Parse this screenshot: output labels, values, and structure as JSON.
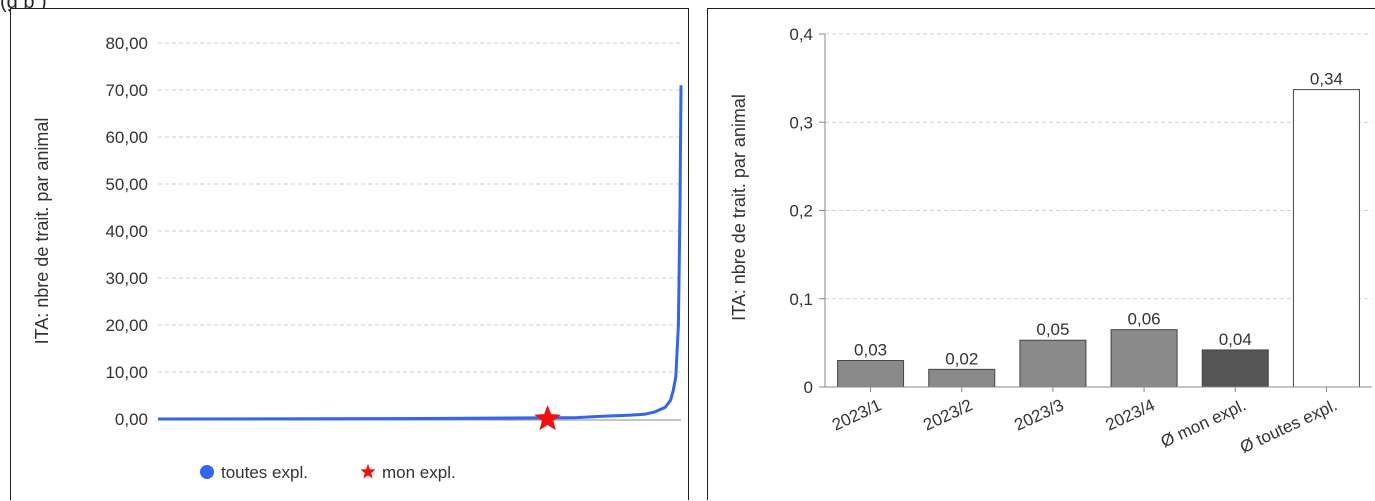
{
  "header": {
    "partial_text": "(g   p        )"
  },
  "chart_data": [
    {
      "type": "line",
      "ylabel": "ITA: nbre de trait.  par animal",
      "ylim": [
        0,
        80
      ],
      "yticks": [
        "0,00",
        "10,00",
        "20,00",
        "30,00",
        "40,00",
        "50,00",
        "60,00",
        "70,00",
        "80,00"
      ],
      "ytick_values": [
        0,
        10,
        20,
        30,
        40,
        50,
        60,
        70,
        80
      ],
      "grid": true,
      "legend_position": "bottom",
      "series": [
        {
          "name": "toutes expl.",
          "color": "#3366ee",
          "marker": "circle",
          "x": [
            0,
            0.5,
            0.8,
            0.85,
            0.9,
            0.93,
            0.95,
            0.97,
            0.98,
            0.985,
            0.99,
            0.995,
            0.998,
            1.0
          ],
          "y": [
            0.0,
            0.1,
            0.3,
            0.6,
            0.8,
            1.0,
            1.5,
            2.5,
            4.0,
            6.0,
            9.0,
            20.0,
            45.0,
            71.0
          ]
        },
        {
          "name": "mon expl.",
          "color": "#ee1111",
          "marker": "star",
          "x": [
            0.745
          ],
          "y": [
            0.0
          ]
        }
      ]
    },
    {
      "type": "bar",
      "ylabel": "ITA: nbre de trait.  par animal",
      "ylim": [
        0,
        0.4
      ],
      "yticks": [
        "0",
        "0,1",
        "0,2",
        "0,3",
        "0,4"
      ],
      "ytick_values": [
        0,
        0.1,
        0.2,
        0.3,
        0.4
      ],
      "grid": true,
      "categories": [
        "2023/1",
        "2023/2",
        "2023/3",
        "2023/4",
        "Ø mon expl.",
        "Ø toutes expl."
      ],
      "values": [
        0.03,
        0.02,
        0.053,
        0.065,
        0.042,
        0.337
      ],
      "data_labels": [
        "0,03",
        "0,02",
        "0,05",
        "0,06",
        "0,04",
        "0,34"
      ],
      "bar_colors": [
        "#8a8a8a",
        "#8a8a8a",
        "#8a8a8a",
        "#8a8a8a",
        "#555555",
        "#ffffff"
      ]
    }
  ]
}
